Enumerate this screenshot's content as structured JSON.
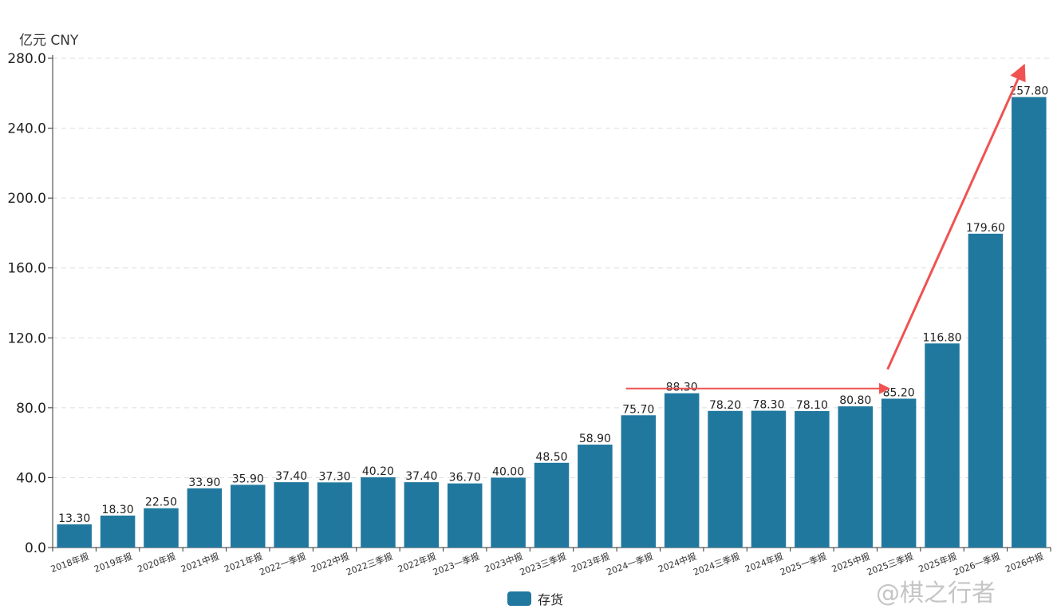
{
  "unit_label": "亿元  CNY",
  "legend": {
    "label": "存货"
  },
  "watermark": "@棋之行者",
  "colors": {
    "bar": "#21789f",
    "arrow": "#f05252",
    "grid": "#dddddd",
    "axis": "#333333"
  },
  "chart_data": {
    "type": "bar",
    "categories": [
      "2018年报",
      "2019年报",
      "2020年报",
      "2021中报",
      "2021年报",
      "2022一季报",
      "2022中报",
      "2022三季报",
      "2022年报",
      "2023一季报",
      "2023中报",
      "2023三季报",
      "2023年报",
      "2024一季报",
      "2024中报",
      "2024三季报",
      "2024年报",
      "2025一季报",
      "2025中报",
      "2025三季报",
      "2025年报",
      "2026一季报",
      "2026中报"
    ],
    "series": [
      {
        "name": "存货",
        "values": [
          13.3,
          18.3,
          22.5,
          33.9,
          35.9,
          37.4,
          37.3,
          40.2,
          37.4,
          36.7,
          40.0,
          48.5,
          58.9,
          75.7,
          88.3,
          78.2,
          78.3,
          78.1,
          80.8,
          85.2,
          116.8,
          179.6,
          257.8
        ],
        "labels": [
          "13.30",
          "18.30",
          "22.50",
          "33.90",
          "35.90",
          "37.40",
          "37.30",
          "40.20",
          "37.40",
          "36.70",
          "40.00",
          "48.50",
          "58.90",
          "75.70",
          "88.30",
          "78.20",
          "78.30",
          "78.10",
          "80.80",
          "85.20",
          "116.80",
          "179.60",
          "257.80"
        ]
      }
    ],
    "ylim": [
      0,
      280
    ],
    "yticks": [
      0,
      40,
      80,
      120,
      160,
      200,
      240,
      280
    ],
    "ytick_labels": [
      "0.0",
      "40.0",
      "80.0",
      "120.0",
      "160.0",
      "200.0",
      "240.0",
      "280.0"
    ],
    "grid": true,
    "legend_position": "bottom",
    "annotations": [
      {
        "type": "arrow",
        "from": {
          "category": "2024中报",
          "y": 91
        },
        "to": {
          "category": "2025三季报",
          "y": 91
        }
      },
      {
        "type": "arrow",
        "from": {
          "category": "2025三季报",
          "y": 102
        },
        "to": {
          "category": "2026中报",
          "y": 276
        }
      }
    ]
  }
}
